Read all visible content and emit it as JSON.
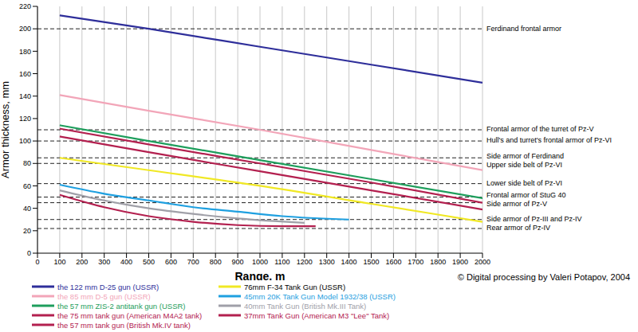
{
  "chart_data": {
    "type": "line",
    "x_label": "Range, m",
    "y_label": "Armor thickness, mm",
    "xlim": [
      0,
      2000
    ],
    "xticks": [
      0,
      100,
      200,
      300,
      400,
      500,
      600,
      700,
      800,
      900,
      1000,
      1100,
      1200,
      1300,
      1400,
      1500,
      1600,
      1700,
      1800,
      1900,
      2000
    ],
    "ylim": [
      0,
      220
    ],
    "yticks": [
      0,
      20,
      40,
      60,
      80,
      100,
      120,
      140,
      160,
      180,
      200,
      220
    ],
    "grid": true,
    "legend": "bottom",
    "credit": "© Digital processing by Valeri Potapov, 2004",
    "series": [
      {
        "name": "the 122 mm D-25 gun (USSR)",
        "color": "#2e2e9a",
        "x": [
          100,
          500,
          1000,
          1500,
          2000
        ],
        "values": [
          212,
          200,
          184,
          168,
          152
        ]
      },
      {
        "name": "the 85 mm D-5 gun (USSR)",
        "color": "#f2a5b8",
        "x": [
          100,
          500,
          1000,
          1500,
          2000
        ],
        "values": [
          141,
          127,
          110,
          92,
          74
        ]
      },
      {
        "name": "the 57 mm ZIS-2 antitank gun (USSR)",
        "color": "#1e9e5c",
        "x": [
          100,
          500,
          1000,
          1500,
          2000
        ],
        "values": [
          114,
          100,
          83,
          66,
          49
        ]
      },
      {
        "name": "the 75 mm tank gun (American M4A2 tank)",
        "color": "#b3204f",
        "x": [
          100,
          500,
          1000,
          1500,
          2000
        ],
        "values": [
          111,
          97,
          80,
          63,
          45
        ]
      },
      {
        "name": "the 57 mm tank gun (British Mk.IV tank)",
        "color": "#b3204f",
        "x": [
          100,
          500,
          1000,
          1500,
          2000
        ],
        "values": [
          104,
          90,
          73,
          56,
          39
        ]
      },
      {
        "name": "76mm F-34 Tank Gun (USSR)",
        "color": "#f0e824",
        "x": [
          100,
          500,
          1000,
          1500,
          2000
        ],
        "values": [
          85,
          74,
          60,
          44,
          28
        ]
      },
      {
        "name": "45mm 20K Tank Gun Model 1932/38 (USSR)",
        "color": "#1fa0e0",
        "x": [
          100,
          300,
          500,
          700,
          900,
          1100,
          1400
        ],
        "values": [
          61,
          53,
          47,
          41,
          37,
          33,
          30
        ]
      },
      {
        "name": "40mm Tank Gun (British Mk.III Tank)",
        "color": "#a0a0a8",
        "x": [
          100,
          300,
          500,
          700,
          900,
          1200
        ],
        "values": [
          56,
          47,
          40,
          35,
          31,
          27
        ]
      },
      {
        "name": "37mm Tank Gun (American M3 \"Lee\" Tank)",
        "color": "#b3204f",
        "x": [
          100,
          300,
          500,
          700,
          900,
          1100,
          1250
        ],
        "values": [
          52,
          41,
          33,
          28,
          25,
          24,
          24
        ]
      }
    ],
    "annotations": [
      {
        "y": 200,
        "text": "Ferdinand frontal armor"
      },
      {
        "y": 110,
        "text": "Frontal armor of the turret of Pz-V"
      },
      {
        "y": 100,
        "text": "Hull's and turret's frontal armor of Pz-VI"
      },
      {
        "y": 85,
        "text": "Side armor of Ferdinand"
      },
      {
        "y": 80,
        "text": "Upper side belt of Pz-VI"
      },
      {
        "y": 62,
        "text": "Lower side belt of Pz-VI"
      },
      {
        "y": 50,
        "text": "Frontal armor of StuG 40"
      },
      {
        "y": 45,
        "text": "Side armor of Pz-V"
      },
      {
        "y": 30,
        "text": "Side armor of Pz-III and Pz-IV"
      },
      {
        "y": 22,
        "text": "Rear armor of Pz-IV"
      }
    ]
  }
}
